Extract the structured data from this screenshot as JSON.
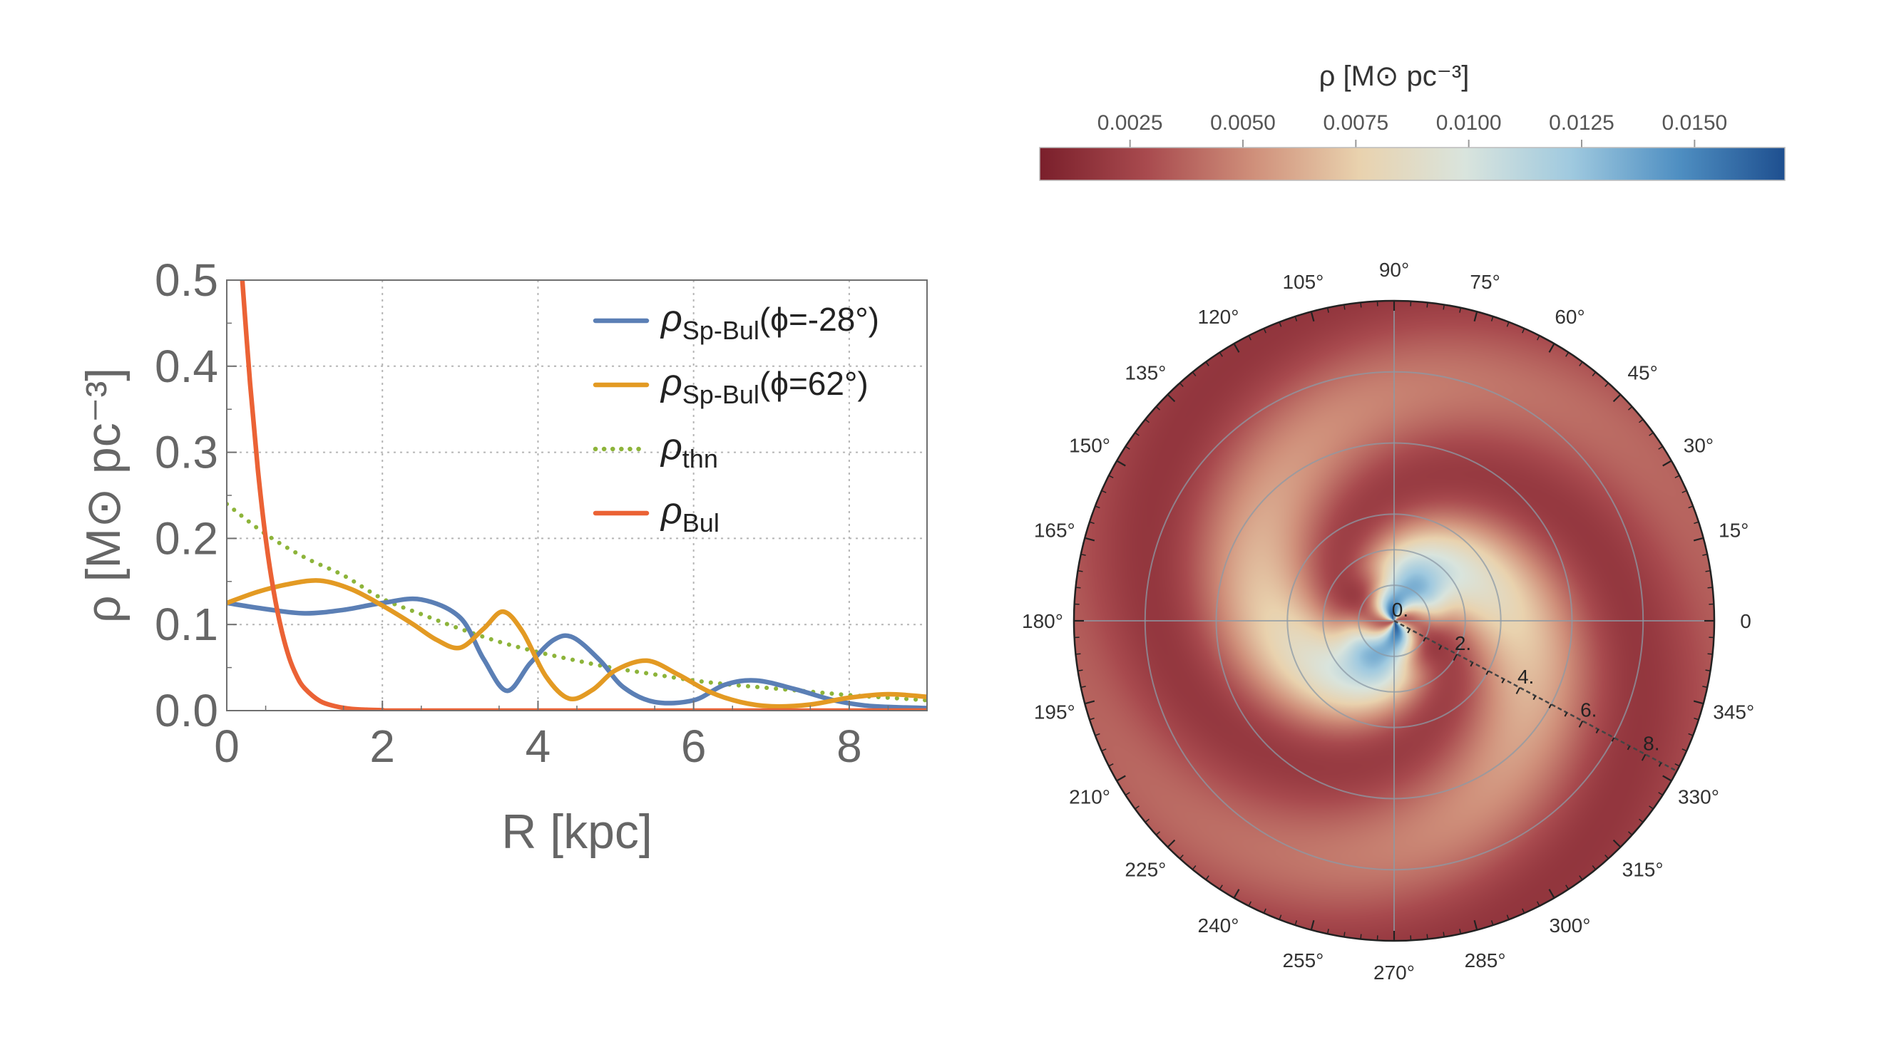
{
  "chart_data": [
    {
      "type": "line",
      "xlabel": "R [kpc]",
      "ylabel": "ρ [M⊙ pc⁻³]",
      "xlim": [
        0,
        9
      ],
      "ylim": [
        0,
        0.5
      ],
      "x_ticks": [
        "0",
        "2",
        "4",
        "6",
        "8"
      ],
      "y_ticks": [
        "0.0",
        "0.1",
        "0.2",
        "0.3",
        "0.4",
        "0.5"
      ],
      "grid": true,
      "legend_position": "top-right",
      "legend": [
        {
          "base": "ρ",
          "sub": "Sp-Bul",
          "rest": "(ϕ=-28°)",
          "color": "#5B7FB5",
          "dash": "solid"
        },
        {
          "base": "ρ",
          "sub": "Sp-Bul",
          "rest": "(ϕ=62°)",
          "color": "#E39A23",
          "dash": "solid"
        },
        {
          "base": "ρ",
          "sub": "thn",
          "rest": "",
          "color": "#8DB43A",
          "dash": "dotted"
        },
        {
          "base": "ρ",
          "sub": "Bul",
          "rest": "",
          "color": "#EB6235",
          "dash": "solid"
        }
      ],
      "series": [
        {
          "name": "ρSp-Bul(ϕ=-28°)",
          "color": "#5B7FB5",
          "dash": "solid",
          "x": [
            0,
            0.5,
            1.0,
            1.5,
            2.0,
            2.5,
            3.0,
            3.3,
            3.6,
            3.9,
            4.2,
            4.45,
            4.8,
            5.1,
            5.5,
            6.0,
            6.4,
            6.8,
            7.3,
            7.8,
            8.2,
            8.6,
            9.0
          ],
          "y": [
            0.125,
            0.118,
            0.113,
            0.117,
            0.125,
            0.129,
            0.108,
            0.06,
            0.023,
            0.055,
            0.082,
            0.085,
            0.058,
            0.027,
            0.01,
            0.012,
            0.03,
            0.035,
            0.025,
            0.012,
            0.006,
            0.004,
            0.003
          ]
        },
        {
          "name": "ρSp-Bul(ϕ=62°)",
          "color": "#E39A23",
          "dash": "solid",
          "x": [
            0,
            0.4,
            0.8,
            1.2,
            1.6,
            2.0,
            2.4,
            2.7,
            3.0,
            3.3,
            3.55,
            3.8,
            4.1,
            4.4,
            4.7,
            5.0,
            5.4,
            5.8,
            6.2,
            6.6,
            7.0,
            7.5,
            8.0,
            8.5,
            9.0
          ],
          "y": [
            0.125,
            0.138,
            0.147,
            0.151,
            0.141,
            0.122,
            0.1,
            0.082,
            0.073,
            0.095,
            0.115,
            0.092,
            0.04,
            0.014,
            0.024,
            0.047,
            0.058,
            0.042,
            0.022,
            0.01,
            0.005,
            0.007,
            0.015,
            0.019,
            0.016
          ]
        },
        {
          "name": "ρthn",
          "color": "#8DB43A",
          "dash": "dotted",
          "x": [
            0,
            0.5,
            1.0,
            1.5,
            2.0,
            2.5,
            3.0,
            3.5,
            4.0,
            4.5,
            5.0,
            5.5,
            6.0,
            6.5,
            7.0,
            7.5,
            8.0,
            8.5,
            9.0
          ],
          "y": [
            0.24,
            0.205,
            0.178,
            0.157,
            0.13,
            0.112,
            0.095,
            0.08,
            0.068,
            0.058,
            0.049,
            0.042,
            0.035,
            0.03,
            0.026,
            0.022,
            0.018,
            0.015,
            0.012
          ]
        },
        {
          "name": "ρBul",
          "color": "#EB6235",
          "dash": "solid",
          "x": [
            0.2,
            0.3,
            0.4,
            0.5,
            0.6,
            0.7,
            0.8,
            0.9,
            1.0,
            1.2,
            1.4,
            1.6,
            1.8,
            2.0,
            2.5,
            9.0
          ],
          "y": [
            0.5,
            0.38,
            0.28,
            0.2,
            0.14,
            0.095,
            0.062,
            0.04,
            0.026,
            0.011,
            0.005,
            0.002,
            0.001,
            0.0005,
            0.0,
            0.0
          ]
        }
      ]
    },
    {
      "type": "heatmap",
      "projection": "polar",
      "colorbar_label": "ρ [M⊙ pc⁻³]",
      "colorbar_ticks": [
        "0.0025",
        "0.0050",
        "0.0075",
        "0.0100",
        "0.0125",
        "0.0150"
      ],
      "colorbar_range": [
        0.0005,
        0.017
      ],
      "colormap": [
        "#7A1F2B",
        "#A84A4E",
        "#CF8F7A",
        "#E9D2AE",
        "#D9E4DD",
        "#9FC9DF",
        "#4F8FC2",
        "#1E4F8F"
      ],
      "angle_labels": [
        "0",
        "15°",
        "30°",
        "45°",
        "60°",
        "75°",
        "90°",
        "105°",
        "120°",
        "135°",
        "150°",
        "165°",
        "180°",
        "195°",
        "210°",
        "225°",
        "240°",
        "255°",
        "270°",
        "285°",
        "300°",
        "315°",
        "330°",
        "345°"
      ],
      "radial_labels": [
        "0.",
        "2.",
        "4.",
        "6.",
        "8."
      ],
      "radial_axis_angle_deg": -28,
      "r_max": 9,
      "grid_radii": [
        1,
        2,
        3,
        5,
        7
      ]
    }
  ]
}
